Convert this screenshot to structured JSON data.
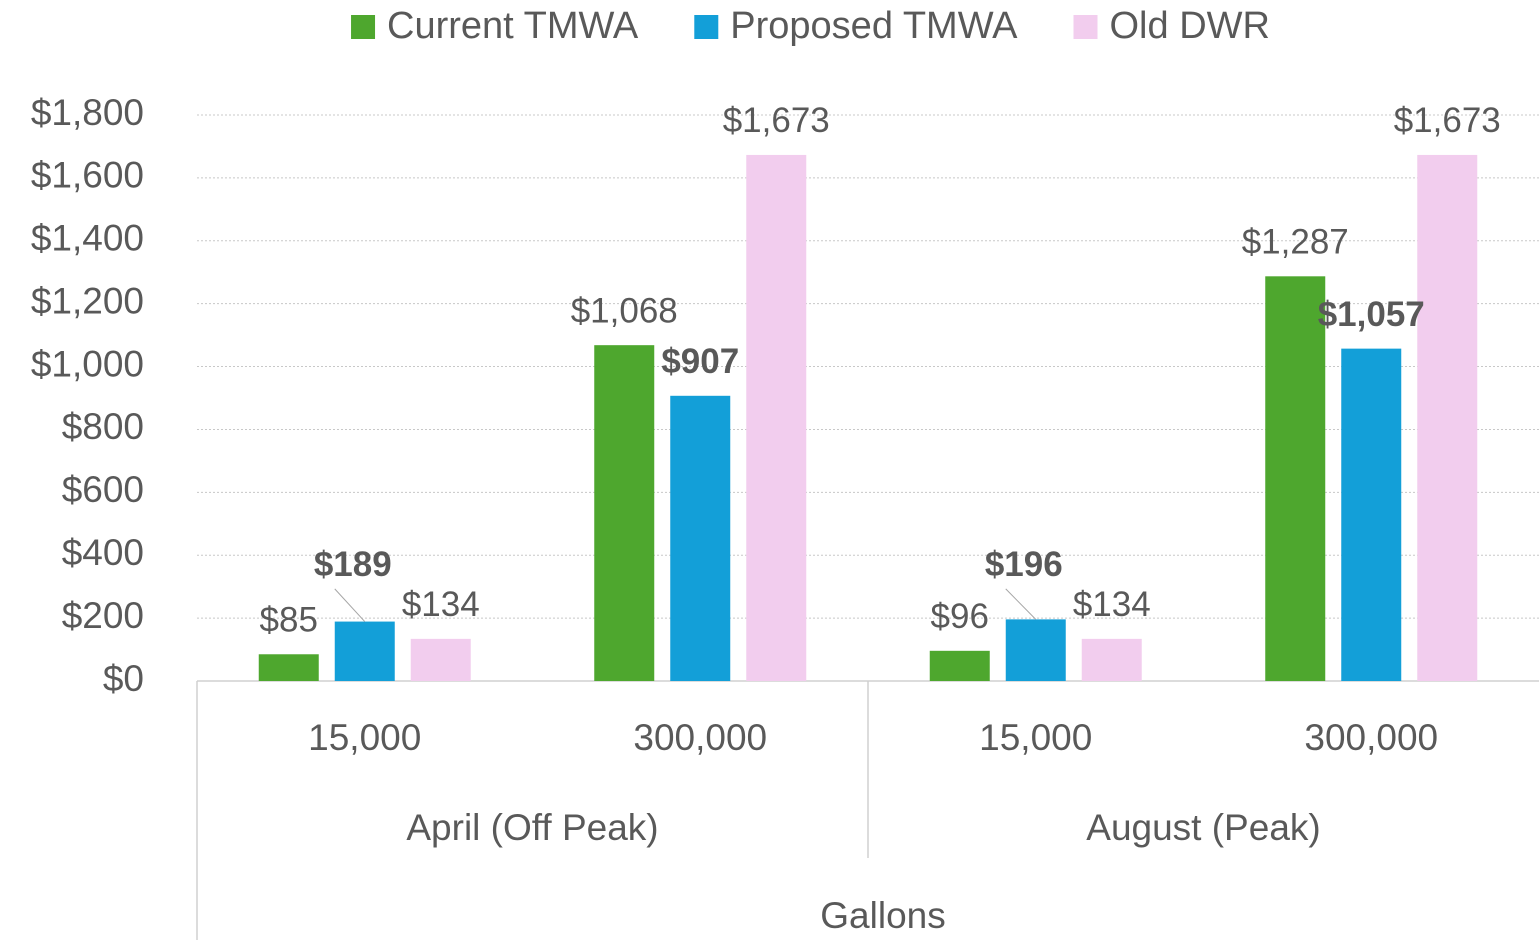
{
  "chart_data": {
    "type": "bar",
    "categories": [
      "15,000",
      "300,000",
      "15,000",
      "300,000"
    ],
    "category_groups": [
      "April (Off Peak)",
      "August (Peak)"
    ],
    "x_label": "Gallons",
    "series": [
      {
        "name": "Current TMWA",
        "color": "#4ea72e",
        "values": [
          85,
          1068,
          96,
          1287
        ],
        "value_labels": [
          "$85",
          "$1,068",
          "$96",
          "$1,287"
        ]
      },
      {
        "name": "Proposed TMWA",
        "color": "#139fd8",
        "values": [
          189,
          907,
          196,
          1057
        ],
        "value_labels": [
          "$189",
          "$907",
          "$196",
          "$1,057"
        ],
        "label_bold": true
      },
      {
        "name": "Old DWR",
        "color": "#f2cdee",
        "values": [
          134,
          1673,
          134,
          1673
        ],
        "value_labels": [
          "$134",
          "$1,673",
          "$134",
          "$1,673"
        ]
      }
    ],
    "ylim": [
      0,
      1800
    ],
    "yticks": [
      {
        "value": 0,
        "label": "$0"
      },
      {
        "value": 200,
        "label": "$200"
      },
      {
        "value": 400,
        "label": "$400"
      },
      {
        "value": 600,
        "label": "$600"
      },
      {
        "value": 800,
        "label": "$800"
      },
      {
        "value": 1000,
        "label": "$1,000"
      },
      {
        "value": 1200,
        "label": "$1,200"
      },
      {
        "value": 1400,
        "label": "$1,400"
      },
      {
        "value": 1600,
        "label": "$1,600"
      },
      {
        "value": 1800,
        "label": "$1,800"
      }
    ],
    "grid": true,
    "legend": "top"
  }
}
